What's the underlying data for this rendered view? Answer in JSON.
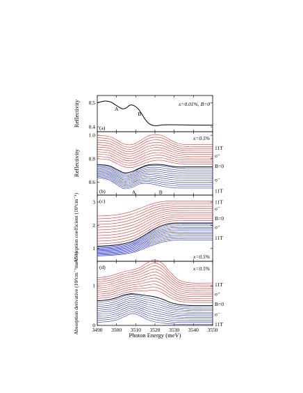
{
  "figure": {
    "xlabel": "Photon Energy (meV)",
    "x_ticks": [
      3490,
      3500,
      3510,
      3520,
      3530,
      3540,
      3550
    ],
    "x_range": [
      3490,
      3550
    ],
    "colors": {
      "sigma_plus": "#e8302a",
      "sigma_minus": "#2630c8",
      "zero_field": "#000000"
    }
  },
  "chart_data": [
    {
      "type": "line",
      "panel": "(a)",
      "ylabel": "Reflectivity",
      "ylim": [
        0.38,
        0.53
      ],
      "y_ticks": [
        0.4,
        0.5
      ],
      "annotation": "x=0.01%, B=0",
      "feature_labels": [
        {
          "text": "A",
          "x": 3500,
          "y": 0.467
        },
        {
          "text": "B",
          "x": 3512,
          "y": 0.447
        }
      ],
      "series": [
        {
          "x": [
            3490,
            3494,
            3497,
            3500,
            3503,
            3505,
            3507,
            3509,
            3511,
            3513,
            3515,
            3517,
            3519,
            3521,
            3524,
            3528,
            3535,
            3545,
            3550
          ],
          "values": [
            0.5,
            0.507,
            0.503,
            0.488,
            0.475,
            0.478,
            0.49,
            0.488,
            0.477,
            0.455,
            0.43,
            0.413,
            0.406,
            0.405,
            0.408,
            0.409,
            0.408,
            0.407,
            0.407
          ]
        }
      ]
    },
    {
      "type": "line",
      "panel": "(b)",
      "ylabel": "Reflectivity",
      "ylim": [
        0.49,
        1.03
      ],
      "y_ticks": [
        0.6,
        0.8,
        1.0
      ],
      "annotation": "x=0.5%",
      "feature_labels": [
        {
          "text": "A",
          "x": 3509,
          "y": 0.5
        },
        {
          "text": "B",
          "x": 3523,
          "y": 0.5
        }
      ],
      "right_labels": [
        {
          "text": "11T",
          "y": 0.89
        },
        {
          "text": "σ⁺",
          "y": 0.825
        },
        {
          "text": "B=0",
          "y": 0.735
        },
        {
          "text": "σ⁻",
          "y": 0.62
        },
        {
          "text": "11T",
          "y": 0.525
        }
      ],
      "family": {
        "description": "11 σ⁺ curves (red), zero-field curve (black), 11 σ⁻ curves (blue)",
        "x": [
          3490,
          3496,
          3500,
          3504,
          3508,
          3512,
          3516,
          3520,
          3524,
          3528,
          3532,
          3536,
          3540,
          3545,
          3550
        ],
        "sigma_plus_top": [
          1.0,
          0.99,
          0.96,
          0.925,
          0.92,
          0.95,
          0.99,
          1.005,
          0.995,
          0.96,
          0.93,
          0.92,
          0.92,
          0.92,
          0.92
        ],
        "sigma_plus_bottom": [
          0.8,
          0.79,
          0.76,
          0.73,
          0.725,
          0.745,
          0.77,
          0.785,
          0.785,
          0.77,
          0.758,
          0.755,
          0.755,
          0.755,
          0.755
        ],
        "zero_field": [
          0.75,
          0.74,
          0.71,
          0.68,
          0.69,
          0.72,
          0.745,
          0.752,
          0.748,
          0.738,
          0.73,
          0.73,
          0.73,
          0.73,
          0.73
        ],
        "sigma_minus_top": [
          0.74,
          0.73,
          0.7,
          0.67,
          0.68,
          0.715,
          0.738,
          0.743,
          0.738,
          0.728,
          0.72,
          0.72,
          0.72,
          0.72,
          0.72
        ],
        "sigma_minus_bottom": [
          0.64,
          0.62,
          0.58,
          0.545,
          0.555,
          0.585,
          0.59,
          0.58,
          0.565,
          0.555,
          0.55,
          0.55,
          0.55,
          0.55,
          0.55
        ],
        "count_each": 11
      }
    },
    {
      "type": "line",
      "panel": "(c)",
      "ylabel": "Absorption coefficient (10⁵cm⁻¹)",
      "ylim": [
        0.45,
        3.3
      ],
      "y_ticks": [
        1.0,
        2.0,
        3.0
      ],
      "annotation": "x=0.5%",
      "right_labels": [
        {
          "text": "11T",
          "y": 3.0
        },
        {
          "text": "σ⁻",
          "y": 2.72
        },
        {
          "text": "B=0",
          "y": 2.3
        },
        {
          "text": "σ⁺",
          "y": 1.92
        },
        {
          "text": "11T",
          "y": 1.45
        }
      ],
      "family": {
        "description": "11 red curves, zero-field curve (black), 11 blue curves",
        "x": [
          3490,
          3496,
          3502,
          3508,
          3512,
          3516,
          3520,
          3524,
          3528,
          3532,
          3536,
          3540,
          3545,
          3550
        ],
        "red_top": [
          2.4,
          2.42,
          2.48,
          2.6,
          2.72,
          2.85,
          2.96,
          3.02,
          3.05,
          3.05,
          3.05,
          3.05,
          3.05,
          3.05
        ],
        "red_bottom": [
          1.2,
          1.22,
          1.28,
          1.4,
          1.55,
          1.75,
          1.95,
          2.1,
          2.18,
          2.2,
          2.2,
          2.2,
          2.2,
          2.2
        ],
        "zero_field": [
          1.1,
          1.12,
          1.18,
          1.3,
          1.45,
          1.65,
          1.85,
          2.0,
          2.08,
          2.1,
          2.1,
          2.1,
          2.1,
          2.1
        ],
        "blue_top": [
          1.05,
          1.07,
          1.13,
          1.25,
          1.4,
          1.6,
          1.8,
          1.95,
          2.03,
          2.05,
          2.05,
          2.05,
          2.05,
          2.05
        ],
        "blue_bottom": [
          0.68,
          0.7,
          0.74,
          0.82,
          0.92,
          1.05,
          1.18,
          1.28,
          1.34,
          1.36,
          1.36,
          1.36,
          1.36,
          1.36
        ],
        "count_each": 11
      }
    },
    {
      "type": "line",
      "panel": "(d)",
      "ylabel": "Absorption derivative (10⁴cm⁻¹meV⁻¹)",
      "ylim": [
        0,
        1.62
      ],
      "y_ticks": [
        0,
        1
      ],
      "annotation": "x=0.5%",
      "right_labels": [
        {
          "text": "11T",
          "y": 1.03
        },
        {
          "text": "σ⁺",
          "y": 0.79
        },
        {
          "text": "B=0",
          "y": 0.54
        },
        {
          "text": "σ⁻",
          "y": 0.28
        },
        {
          "text": "11T",
          "y": 0.03
        }
      ],
      "family": {
        "description": "11 red curves, zero-field curve (black), 11 blue curves",
        "x": [
          3490,
          3496,
          3500,
          3504,
          3508,
          3512,
          3516,
          3520,
          3524,
          3528,
          3532,
          3536,
          3540,
          3545,
          3550
        ],
        "red_top": [
          1.2,
          1.24,
          1.3,
          1.36,
          1.4,
          1.46,
          1.58,
          1.66,
          1.56,
          1.34,
          1.16,
          1.09,
          1.07,
          1.07,
          1.07
        ],
        "red_bottom": [
          0.68,
          0.71,
          0.76,
          0.82,
          0.86,
          0.87,
          0.88,
          0.89,
          0.82,
          0.7,
          0.62,
          0.59,
          0.58,
          0.58,
          0.58
        ],
        "zero_field": [
          0.62,
          0.65,
          0.7,
          0.77,
          0.8,
          0.78,
          0.75,
          0.72,
          0.66,
          0.58,
          0.53,
          0.51,
          0.5,
          0.5,
          0.5
        ],
        "blue_top": [
          0.58,
          0.61,
          0.66,
          0.74,
          0.78,
          0.74,
          0.7,
          0.66,
          0.6,
          0.53,
          0.49,
          0.47,
          0.46,
          0.46,
          0.46
        ],
        "blue_bottom": [
          0.08,
          0.1,
          0.14,
          0.22,
          0.3,
          0.25,
          0.15,
          0.09,
          0.06,
          0.04,
          0.03,
          0.03,
          0.03,
          0.03,
          0.03
        ],
        "count_each": 11
      }
    }
  ]
}
